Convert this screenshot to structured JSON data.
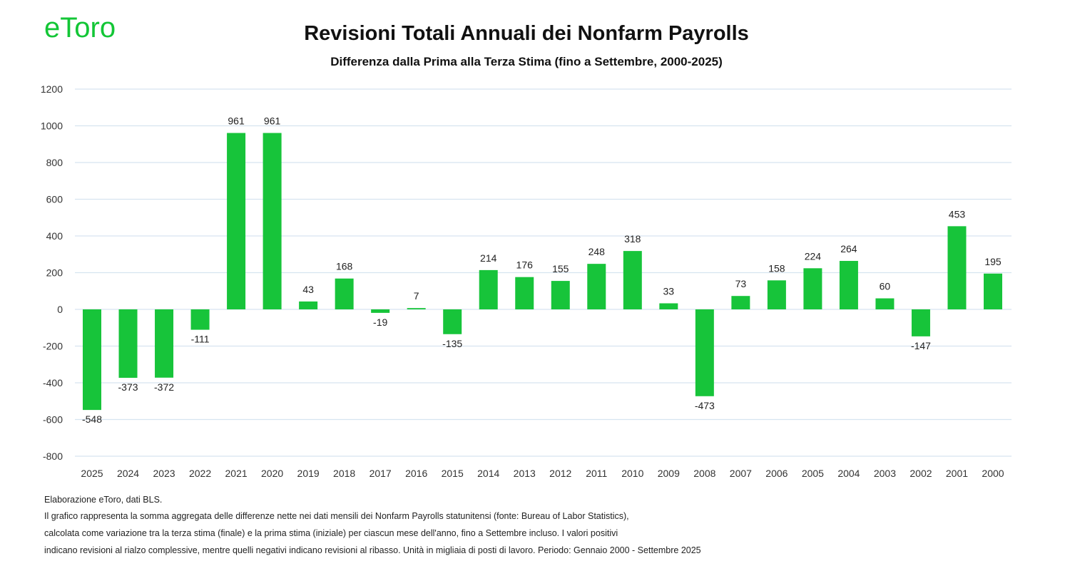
{
  "logo": {
    "text": "eToro",
    "color": "#13c636"
  },
  "chart_data": {
    "type": "bar",
    "title": "Revisioni Totali Annuali dei Nonfarm Payrolls",
    "subtitle": "Differenza dalla Prima alla Terza Stima (fino a Settembre, 2000-2025)",
    "categories": [
      "2025",
      "2024",
      "2023",
      "2022",
      "2021",
      "2020",
      "2019",
      "2018",
      "2017",
      "2016",
      "2015",
      "2014",
      "2013",
      "2012",
      "2011",
      "2010",
      "2009",
      "2008",
      "2007",
      "2006",
      "2005",
      "2004",
      "2003",
      "2002",
      "2001",
      "2000"
    ],
    "values": [
      -548,
      -373,
      -372,
      -111,
      961,
      961,
      43,
      168,
      -19,
      7,
      -135,
      214,
      176,
      155,
      248,
      318,
      33,
      -473,
      73,
      158,
      224,
      264,
      60,
      -147,
      453,
      195
    ],
    "ylim": [
      -800,
      1200
    ],
    "yticks": [
      -800,
      -600,
      -400,
      -200,
      0,
      200,
      400,
      600,
      800,
      1000,
      1200
    ],
    "grid": true,
    "data_labels": true,
    "bar_color": "#17c43a",
    "grid_color": "#d6e4f0"
  },
  "footer": {
    "lines": [
      "Elaborazione eToro,  dati BLS.",
      "Il grafico rappresenta la somma aggregata delle differenze nette nei dati mensili dei Nonfarm Payrolls statunitensi (fonte: Bureau of Labor Statistics),",
      " calcolata come variazione tra la terza stima (finale) e la prima stima (iniziale) per ciascun mese dell'anno, fino a Settembre incluso. I valori positivi",
      "indicano revisioni al rialzo complessive, mentre quelli negativi indicano revisioni al ribasso. Unità in migliaia di posti di lavoro. Periodo: Gennaio 2000 - Settembre 2025"
    ]
  }
}
